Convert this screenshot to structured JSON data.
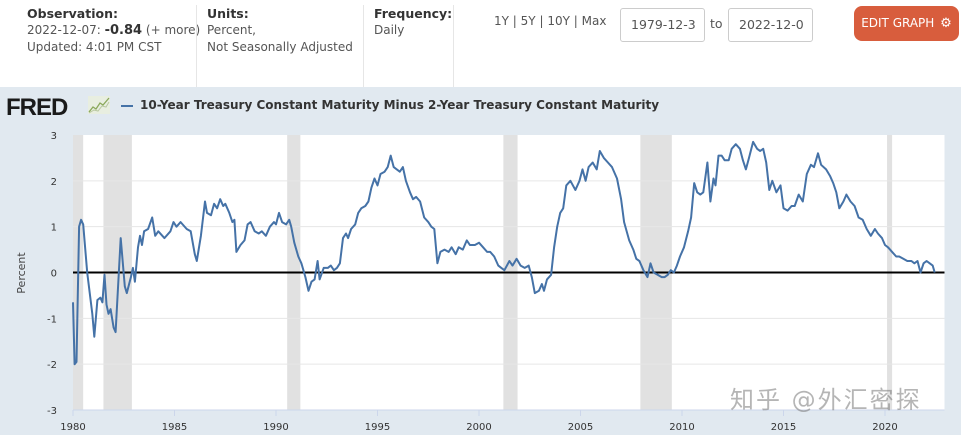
{
  "header": {
    "observation_label": "Observation:",
    "observation_date": "2022-12-07:",
    "observation_value": "-0.84",
    "observation_more": "(+ more)",
    "updated": "Updated: 4:01 PM CST",
    "units_label": "Units:",
    "units_line1": "Percent,",
    "units_line2": "Not Seasonally Adjusted",
    "frequency_label": "Frequency:",
    "frequency_value": "Daily",
    "ranges": [
      "1Y",
      "5Y",
      "10Y",
      "Max"
    ],
    "range_separator": "|",
    "date_from": "1979-12-3",
    "date_to_label": "to",
    "date_to": "2022-12-0",
    "edit_button": "EDIT GRAPH",
    "edit_icon": "gear-icon"
  },
  "branding": {
    "logo_text": "FRED",
    "logo_icon": "sparkline-chart-icon"
  },
  "watermark": "知乎 @外汇密探",
  "colors": {
    "series": "#4572a7",
    "recession": "#e1e1e1",
    "edit_button": "#d85d3d",
    "background": "#e1e9f0"
  },
  "chart_data": {
    "type": "line",
    "title": "10-Year Treasury Constant Maturity Minus 2-Year Treasury Constant Maturity",
    "xlabel": "",
    "ylabel": "Percent",
    "xlim": [
      1980.0,
      2022.93
    ],
    "ylim": [
      -3,
      3
    ],
    "yticks": [
      3,
      2,
      1,
      0,
      -1,
      -2,
      -3
    ],
    "xticks": [
      1980,
      1985,
      1990,
      1995,
      2000,
      2005,
      2010,
      2015,
      2020
    ],
    "grid": true,
    "legend": "top-left",
    "zero_line": true,
    "recessions": [
      [
        1980.0,
        1980.5
      ],
      [
        1981.5,
        1982.9
      ],
      [
        1990.55,
        1991.2
      ],
      [
        2001.2,
        2001.9
      ],
      [
        2007.95,
        2009.5
      ],
      [
        2020.1,
        2020.35
      ]
    ],
    "series": [
      {
        "name": "10-Year Treasury Constant Maturity Minus 2-Year Treasury Constant Maturity",
        "points": [
          [
            1980.0,
            -0.65
          ],
          [
            1980.08,
            -2.0
          ],
          [
            1980.17,
            -1.95
          ],
          [
            1980.3,
            1.0
          ],
          [
            1980.4,
            1.15
          ],
          [
            1980.5,
            1.05
          ],
          [
            1980.7,
            0.0
          ],
          [
            1980.95,
            -0.9
          ],
          [
            1981.05,
            -1.4
          ],
          [
            1981.2,
            -0.6
          ],
          [
            1981.35,
            -0.55
          ],
          [
            1981.45,
            -0.65
          ],
          [
            1981.55,
            -0.05
          ],
          [
            1981.65,
            -0.7
          ],
          [
            1981.75,
            -0.9
          ],
          [
            1981.85,
            -0.8
          ],
          [
            1982.0,
            -1.2
          ],
          [
            1982.1,
            -1.3
          ],
          [
            1982.35,
            0.75
          ],
          [
            1982.55,
            -0.3
          ],
          [
            1982.65,
            -0.45
          ],
          [
            1982.85,
            -0.1
          ],
          [
            1982.95,
            0.1
          ],
          [
            1983.05,
            -0.2
          ],
          [
            1983.2,
            0.55
          ],
          [
            1983.3,
            0.8
          ],
          [
            1983.4,
            0.6
          ],
          [
            1983.5,
            0.9
          ],
          [
            1983.7,
            0.95
          ],
          [
            1983.9,
            1.2
          ],
          [
            1984.05,
            0.8
          ],
          [
            1984.2,
            0.9
          ],
          [
            1984.5,
            0.75
          ],
          [
            1984.8,
            0.9
          ],
          [
            1984.95,
            1.1
          ],
          [
            1985.1,
            1.0
          ],
          [
            1985.3,
            1.1
          ],
          [
            1985.6,
            0.95
          ],
          [
            1985.8,
            0.9
          ],
          [
            1986.0,
            0.4
          ],
          [
            1986.1,
            0.25
          ],
          [
            1986.3,
            0.8
          ],
          [
            1986.5,
            1.55
          ],
          [
            1986.6,
            1.3
          ],
          [
            1986.8,
            1.25
          ],
          [
            1986.95,
            1.5
          ],
          [
            1987.1,
            1.4
          ],
          [
            1987.25,
            1.6
          ],
          [
            1987.4,
            1.45
          ],
          [
            1987.5,
            1.5
          ],
          [
            1987.7,
            1.3
          ],
          [
            1987.85,
            1.1
          ],
          [
            1987.95,
            1.15
          ],
          [
            1988.05,
            0.45
          ],
          [
            1988.25,
            0.6
          ],
          [
            1988.45,
            0.7
          ],
          [
            1988.6,
            1.05
          ],
          [
            1988.75,
            1.1
          ],
          [
            1988.95,
            0.9
          ],
          [
            1989.15,
            0.85
          ],
          [
            1989.3,
            0.9
          ],
          [
            1989.5,
            0.8
          ],
          [
            1989.7,
            1.0
          ],
          [
            1989.9,
            1.1
          ],
          [
            1990.0,
            1.05
          ],
          [
            1990.15,
            1.3
          ],
          [
            1990.3,
            1.1
          ],
          [
            1990.5,
            1.05
          ],
          [
            1990.65,
            1.15
          ],
          [
            1990.75,
            1.0
          ],
          [
            1990.9,
            0.65
          ],
          [
            1991.1,
            0.35
          ],
          [
            1991.25,
            0.2
          ],
          [
            1991.45,
            -0.1
          ],
          [
            1991.6,
            -0.4
          ],
          [
            1991.75,
            -0.2
          ],
          [
            1991.9,
            -0.15
          ],
          [
            1992.05,
            0.25
          ],
          [
            1992.15,
            -0.15
          ],
          [
            1992.35,
            0.1
          ],
          [
            1992.55,
            0.1
          ],
          [
            1992.7,
            0.15
          ],
          [
            1992.85,
            0.05
          ],
          [
            1993.0,
            0.1
          ],
          [
            1993.15,
            0.2
          ],
          [
            1993.3,
            0.75
          ],
          [
            1993.45,
            0.85
          ],
          [
            1993.55,
            0.75
          ],
          [
            1993.7,
            0.95
          ],
          [
            1993.9,
            1.05
          ],
          [
            1994.05,
            1.3
          ],
          [
            1994.2,
            1.4
          ],
          [
            1994.4,
            1.45
          ],
          [
            1994.55,
            1.55
          ],
          [
            1994.7,
            1.85
          ],
          [
            1994.85,
            2.05
          ],
          [
            1995.0,
            1.9
          ],
          [
            1995.15,
            2.15
          ],
          [
            1995.35,
            2.2
          ],
          [
            1995.5,
            2.3
          ],
          [
            1995.65,
            2.55
          ],
          [
            1995.8,
            2.3
          ],
          [
            1995.95,
            2.25
          ],
          [
            1996.1,
            2.2
          ],
          [
            1996.25,
            2.3
          ],
          [
            1996.4,
            2.0
          ],
          [
            1996.6,
            1.75
          ],
          [
            1996.75,
            1.6
          ],
          [
            1996.9,
            1.65
          ],
          [
            1997.1,
            1.55
          ],
          [
            1997.3,
            1.2
          ],
          [
            1997.5,
            1.1
          ],
          [
            1997.65,
            1.0
          ],
          [
            1997.8,
            0.95
          ],
          [
            1997.95,
            0.2
          ],
          [
            1998.1,
            0.45
          ],
          [
            1998.3,
            0.5
          ],
          [
            1998.5,
            0.45
          ],
          [
            1998.65,
            0.55
          ],
          [
            1998.85,
            0.4
          ],
          [
            1999.0,
            0.55
          ],
          [
            1999.2,
            0.5
          ],
          [
            1999.4,
            0.7
          ],
          [
            1999.55,
            0.6
          ],
          [
            1999.8,
            0.6
          ],
          [
            2000.0,
            0.65
          ],
          [
            2000.2,
            0.55
          ],
          [
            2000.4,
            0.45
          ],
          [
            2000.55,
            0.45
          ],
          [
            2000.75,
            0.35
          ],
          [
            2000.95,
            0.15
          ],
          [
            2001.1,
            0.1
          ],
          [
            2001.25,
            0.05
          ],
          [
            2001.5,
            0.25
          ],
          [
            2001.65,
            0.15
          ],
          [
            2001.85,
            0.3
          ],
          [
            2002.05,
            0.15
          ],
          [
            2002.25,
            0.1
          ],
          [
            2002.45,
            0.15
          ],
          [
            2002.6,
            -0.1
          ],
          [
            2002.75,
            -0.45
          ],
          [
            2002.95,
            -0.4
          ],
          [
            2003.1,
            -0.25
          ],
          [
            2003.2,
            -0.4
          ],
          [
            2003.35,
            -0.15
          ],
          [
            2003.55,
            -0.05
          ],
          [
            2003.7,
            0.55
          ],
          [
            2003.85,
            1.0
          ],
          [
            2004.0,
            1.3
          ],
          [
            2004.15,
            1.4
          ],
          [
            2004.3,
            1.9
          ],
          [
            2004.5,
            2.0
          ],
          [
            2004.75,
            1.8
          ],
          [
            2004.95,
            2.0
          ],
          [
            2005.1,
            2.25
          ],
          [
            2005.25,
            2.0
          ],
          [
            2005.4,
            2.3
          ],
          [
            2005.6,
            2.4
          ],
          [
            2005.8,
            2.25
          ],
          [
            2005.95,
            2.65
          ],
          [
            2006.15,
            2.5
          ],
          [
            2006.35,
            2.4
          ],
          [
            2006.55,
            2.3
          ],
          [
            2006.8,
            2.05
          ],
          [
            2007.0,
            1.6
          ],
          [
            2007.15,
            1.1
          ],
          [
            2007.4,
            0.7
          ],
          [
            2007.6,
            0.5
          ],
          [
            2007.75,
            0.3
          ],
          [
            2007.9,
            0.25
          ],
          [
            2008.1,
            0.05
          ],
          [
            2008.3,
            -0.1
          ],
          [
            2008.45,
            0.2
          ],
          [
            2008.6,
            0.0
          ],
          [
            2008.8,
            -0.05
          ],
          [
            2009.0,
            -0.1
          ],
          [
            2009.15,
            -0.1
          ],
          [
            2009.3,
            -0.05
          ],
          [
            2009.45,
            0.05
          ],
          [
            2009.6,
            0.0
          ],
          [
            2009.75,
            0.15
          ],
          [
            2009.9,
            0.35
          ],
          [
            2010.1,
            0.55
          ],
          [
            2010.3,
            0.9
          ],
          [
            2010.45,
            1.2
          ],
          [
            2010.6,
            1.95
          ],
          [
            2010.75,
            1.75
          ],
          [
            2010.9,
            1.7
          ],
          [
            2011.05,
            1.75
          ],
          [
            2011.25,
            2.4
          ],
          [
            2011.4,
            1.55
          ],
          [
            2011.55,
            2.05
          ],
          [
            2011.65,
            1.9
          ],
          [
            2011.8,
            2.55
          ],
          [
            2011.95,
            2.55
          ],
          [
            2012.1,
            2.45
          ],
          [
            2012.3,
            2.45
          ],
          [
            2012.45,
            2.7
          ],
          [
            2012.65,
            2.8
          ],
          [
            2012.85,
            2.7
          ],
          [
            2013.0,
            2.45
          ],
          [
            2013.15,
            2.25
          ],
          [
            2013.3,
            2.5
          ],
          [
            2013.5,
            2.85
          ],
          [
            2013.7,
            2.7
          ],
          [
            2013.85,
            2.65
          ],
          [
            2014.0,
            2.7
          ],
          [
            2014.15,
            2.4
          ],
          [
            2014.3,
            1.8
          ],
          [
            2014.45,
            2.0
          ],
          [
            2014.65,
            1.75
          ],
          [
            2014.85,
            1.9
          ],
          [
            2015.0,
            1.4
          ],
          [
            2015.2,
            1.35
          ],
          [
            2015.4,
            1.45
          ],
          [
            2015.55,
            1.45
          ],
          [
            2015.75,
            1.7
          ],
          [
            2015.95,
            1.55
          ],
          [
            2016.15,
            2.15
          ],
          [
            2016.35,
            2.35
          ],
          [
            2016.5,
            2.3
          ],
          [
            2016.7,
            2.6
          ],
          [
            2016.85,
            2.35
          ],
          [
            2017.1,
            2.25
          ],
          [
            2017.3,
            2.1
          ],
          [
            2017.45,
            1.95
          ],
          [
            2017.6,
            1.75
          ],
          [
            2017.75,
            1.4
          ],
          [
            2017.95,
            1.55
          ],
          [
            2018.1,
            1.7
          ],
          [
            2018.3,
            1.55
          ],
          [
            2018.5,
            1.45
          ],
          [
            2018.7,
            1.2
          ],
          [
            2018.9,
            1.15
          ],
          [
            2019.1,
            0.95
          ],
          [
            2019.3,
            0.8
          ],
          [
            2019.5,
            0.95
          ],
          [
            2019.65,
            0.85
          ],
          [
            2019.85,
            0.75
          ],
          [
            2020.0,
            0.6
          ],
          [
            2020.15,
            0.55
          ],
          [
            2020.35,
            0.45
          ],
          [
            2020.55,
            0.35
          ],
          [
            2020.7,
            0.35
          ],
          [
            2020.9,
            0.3
          ],
          [
            2021.1,
            0.25
          ],
          [
            2021.3,
            0.25
          ],
          [
            2021.45,
            0.2
          ],
          [
            2021.6,
            0.25
          ],
          [
            2021.75,
            0.0
          ],
          [
            2021.9,
            0.2
          ],
          [
            2022.05,
            0.25
          ],
          [
            2022.2,
            0.2
          ],
          [
            2022.35,
            0.15
          ],
          [
            2022.45,
            0.0
          ]
        ]
      }
    ]
  }
}
